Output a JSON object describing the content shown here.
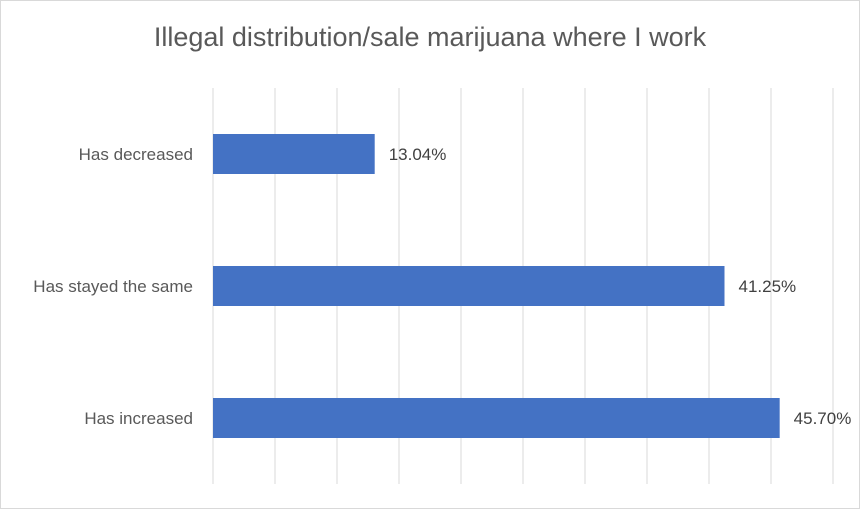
{
  "chart_data": {
    "type": "bar",
    "orientation": "horizontal",
    "title": "Illegal distribution/sale marijuana where I work",
    "xlabel": "",
    "ylabel": "",
    "categories": [
      "Has decreased",
      "Has stayed the same",
      "Has increased"
    ],
    "values": [
      13.04,
      41.25,
      45.7
    ],
    "data_labels": [
      "13.04%",
      "41.25%",
      "45.70%"
    ],
    "xlim": [
      0,
      50
    ],
    "grid": true,
    "legend": "none",
    "colors": {
      "bar": "#4472c4",
      "grid": "#d9d9d9",
      "text": "#595959"
    }
  }
}
